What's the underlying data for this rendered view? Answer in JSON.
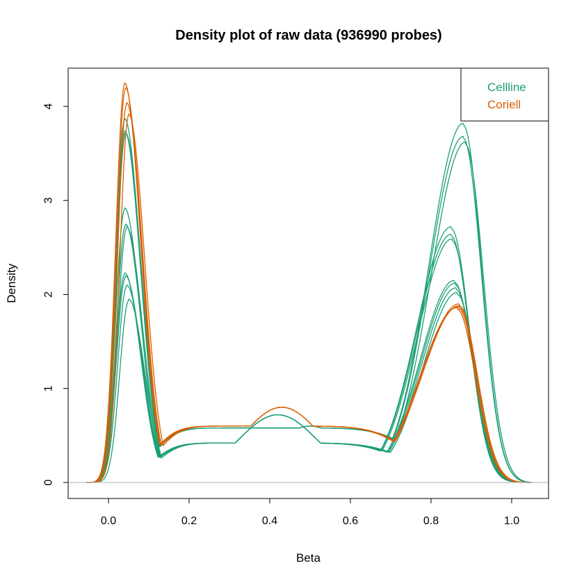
{
  "chart_data": {
    "type": "line",
    "title": "Density plot of raw data (936990 probes)",
    "xlabel": "Beta",
    "ylabel": "Density",
    "xlim": [
      -0.05,
      1.05
    ],
    "ylim": [
      0,
      4.4
    ],
    "xticks": [
      0.0,
      0.2,
      0.4,
      0.6,
      0.8,
      1.0
    ],
    "xtick_labels": [
      "0.0",
      "0.2",
      "0.4",
      "0.6",
      "0.8",
      "1.0"
    ],
    "yticks": [
      0,
      1,
      2,
      3,
      4
    ],
    "ytick_labels": [
      "0",
      "1",
      "2",
      "3",
      "4"
    ],
    "baseline": 0,
    "legend": {
      "position": "top-right",
      "entries": [
        {
          "label": "Cellline",
          "color": "#1b9e77"
        },
        {
          "label": "Coriell",
          "color": "#d95f02"
        }
      ]
    },
    "series": [
      {
        "name": "Cellline 1",
        "group": "Cellline",
        "color": "#1b9e77",
        "peak1": {
          "x": 0.04,
          "y": 3.72
        },
        "peak2": {
          "x": 0.88,
          "y": 3.66
        },
        "trough": {
          "x": 0.55,
          "y": 0.55
        }
      },
      {
        "name": "Cellline 2",
        "group": "Cellline",
        "color": "#1b9e77",
        "peak1": {
          "x": 0.04,
          "y": 3.85
        },
        "peak2": {
          "x": 0.88,
          "y": 3.8
        },
        "trough": {
          "x": 0.55,
          "y": 0.54
        }
      },
      {
        "name": "Cellline 3",
        "group": "Cellline",
        "color": "#1b9e77",
        "peak1": {
          "x": 0.042,
          "y": 3.7
        },
        "peak2": {
          "x": 0.885,
          "y": 3.6
        },
        "trough": {
          "x": 0.55,
          "y": 0.55
        }
      },
      {
        "name": "Cellline 4",
        "group": "Cellline",
        "color": "#1b9e77",
        "peak1": {
          "x": 0.04,
          "y": 2.9
        },
        "peak2": {
          "x": 0.85,
          "y": 2.7
        },
        "trough": {
          "x": 0.25,
          "y": 0.44
        }
      },
      {
        "name": "Cellline 5",
        "group": "Cellline",
        "color": "#1b9e77",
        "peak1": {
          "x": 0.042,
          "y": 2.73
        },
        "peak2": {
          "x": 0.85,
          "y": 2.62
        },
        "trough": {
          "x": 0.24,
          "y": 0.42
        }
      },
      {
        "name": "Cellline 6",
        "group": "Cellline",
        "color": "#1b9e77",
        "peak1": {
          "x": 0.045,
          "y": 2.7
        },
        "peak2": {
          "x": 0.852,
          "y": 2.57
        },
        "trough": {
          "x": 0.24,
          "y": 0.4
        }
      },
      {
        "name": "Cellline 7",
        "group": "Cellline",
        "color": "#1b9e77",
        "peak1": {
          "x": 0.04,
          "y": 2.21
        },
        "peak2": {
          "x": 0.858,
          "y": 2.13
        },
        "trough": {
          "x": 0.24,
          "y": 0.37
        }
      },
      {
        "name": "Cellline 8",
        "group": "Cellline",
        "color": "#1b9e77",
        "peak1": {
          "x": 0.042,
          "y": 2.18
        },
        "peak2": {
          "x": 0.86,
          "y": 2.1
        },
        "trough": {
          "x": 0.24,
          "y": 0.36
        }
      },
      {
        "name": "Cellline 9",
        "group": "Cellline",
        "color": "#1b9e77",
        "peak1": {
          "x": 0.045,
          "y": 2.08
        },
        "peak2": {
          "x": 0.862,
          "y": 2.05
        },
        "trough": {
          "x": 0.23,
          "y": 0.36
        }
      },
      {
        "name": "Cellline 10",
        "group": "Cellline",
        "color": "#1b9e77",
        "peak1": {
          "x": 0.05,
          "y": 1.93
        },
        "peak2": {
          "x": 0.865,
          "y": 2.0
        },
        "trough": {
          "x": 0.23,
          "y": 0.37
        }
      },
      {
        "name": "Coriell 1",
        "group": "Coriell",
        "color": "#d95f02",
        "peak1": {
          "x": 0.04,
          "y": 4.23
        },
        "peak2": {
          "x": 0.87,
          "y": 1.88
        },
        "trough": {
          "x": 0.25,
          "y": 0.57
        }
      },
      {
        "name": "Coriell 2",
        "group": "Coriell",
        "color": "#d95f02",
        "peak1": {
          "x": 0.042,
          "y": 4.18
        },
        "peak2": {
          "x": 0.87,
          "y": 1.86
        },
        "trough": {
          "x": 0.25,
          "y": 0.56
        }
      },
      {
        "name": "Coriell 3",
        "group": "Coriell",
        "color": "#d95f02",
        "peak1": {
          "x": 0.045,
          "y": 4.02
        },
        "peak2": {
          "x": 0.868,
          "y": 1.85
        },
        "trough": {
          "x": 0.25,
          "y": 0.56
        }
      },
      {
        "name": "Coriell 4",
        "group": "Coriell",
        "color": "#d95f02",
        "peak1": {
          "x": 0.05,
          "y": 3.9
        },
        "peak2": {
          "x": 0.865,
          "y": 1.84
        },
        "trough": {
          "x": 0.25,
          "y": 0.55
        }
      }
    ]
  }
}
